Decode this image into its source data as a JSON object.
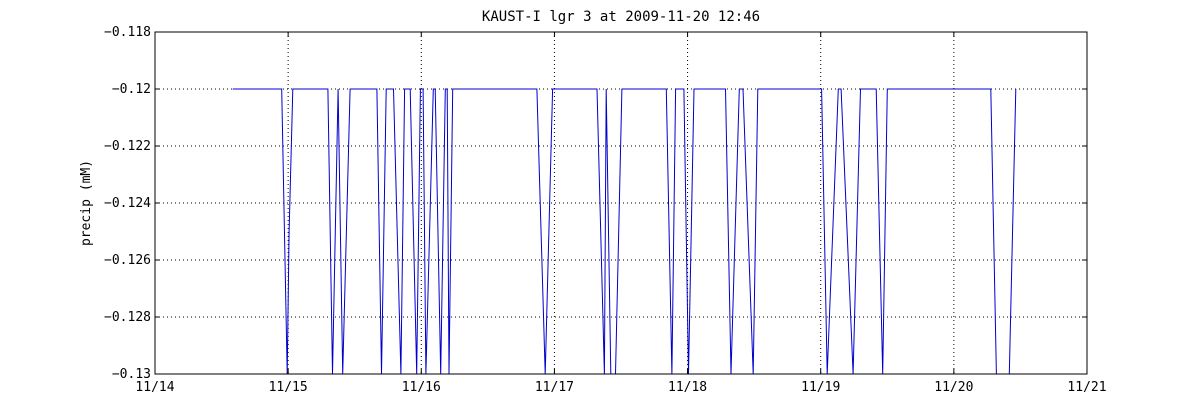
{
  "chart_data": {
    "type": "line",
    "title": "KAUST-I lgr 3 at 2009-11-20 12:46",
    "xlabel": "",
    "ylabel": "precip (mM)",
    "xlim": [
      "2009-11-14 00:00",
      "2009-11-21 00:00"
    ],
    "ylim": [
      -0.13,
      -0.118
    ],
    "x_ticks": [
      "11/14",
      "11/15",
      "11/16",
      "11/17",
      "11/18",
      "11/19",
      "11/20",
      "11/21"
    ],
    "y_ticks": [
      "-0.118",
      "-0.12",
      "-0.122",
      "-0.124",
      "-0.126",
      "-0.128",
      "-0.13"
    ],
    "grid": true,
    "legend": "none",
    "line_color": "#0000cc",
    "series": [
      {
        "x": [
          "2009-11-14 14:00",
          "2009-11-14 22:50",
          "2009-11-14 23:50",
          "2009-11-15 00:10",
          "2009-11-15 00:50",
          "2009-11-15 03:00",
          "2009-11-15 07:10",
          "2009-11-15 08:00",
          "2009-11-15 09:00",
          "2009-11-15 09:50",
          "2009-11-15 11:10",
          "2009-11-15 12:10",
          "2009-11-15 16:00",
          "2009-11-15 16:50",
          "2009-11-15 17:40",
          "2009-11-15 19:00",
          "2009-11-15 20:20",
          "2009-11-15 21:00",
          "2009-11-15 22:00",
          "2009-11-15 23:10",
          "2009-11-15 23:50",
          "2009-11-16 00:20",
          "2009-11-16 00:50",
          "2009-11-16 02:10",
          "2009-11-16 02:30",
          "2009-11-16 03:30",
          "2009-11-16 04:20",
          "2009-11-16 04:40",
          "2009-11-16 05:00",
          "2009-11-16 05:40",
          "2009-11-16 06:50",
          "2009-11-16 08:40",
          "2009-11-16 20:50",
          "2009-11-16 22:20",
          "2009-11-16 23:40",
          "2009-11-17 00:40",
          "2009-11-17 07:40",
          "2009-11-17 09:00",
          "2009-11-17 09:20",
          "2009-11-17 10:10",
          "2009-11-17 11:00",
          "2009-11-17 12:10",
          "2009-11-17 14:00",
          "2009-11-17 20:10",
          "2009-11-17 21:10",
          "2009-11-17 21:50",
          "2009-11-17 23:20",
          "2009-11-18 00:10",
          "2009-11-18 01:10",
          "2009-11-18 06:50",
          "2009-11-18 07:50",
          "2009-11-18 09:20",
          "2009-11-18 10:00",
          "2009-11-18 11:50",
          "2009-11-18 12:40",
          "2009-11-18 14:00",
          "2009-11-18 23:00",
          "2009-11-19 00:10",
          "2009-11-19 01:10",
          "2009-11-19 03:10",
          "2009-11-19 03:40",
          "2009-11-19 05:50",
          "2009-11-19 07:10",
          "2009-11-19 10:00",
          "2009-11-19 11:10",
          "2009-11-19 12:00",
          "2009-11-19 14:00",
          "2009-11-19 14:40",
          "2009-11-19 15:40",
          "2009-11-20 06:40",
          "2009-11-20 07:40",
          "2009-11-20 10:00",
          "2009-11-20 11:10"
        ],
        "y": [
          -0.12,
          -0.12,
          -0.13,
          -0.125,
          -0.12,
          -0.12,
          -0.12,
          -0.13,
          -0.12,
          -0.13,
          -0.12,
          -0.12,
          -0.12,
          -0.13,
          -0.12,
          -0.12,
          -0.13,
          -0.12,
          -0.12,
          -0.13,
          -0.12,
          -0.12,
          -0.13,
          -0.12,
          -0.12,
          -0.13,
          -0.12,
          -0.12,
          -0.13,
          -0.12,
          -0.12,
          -0.12,
          -0.12,
          -0.13,
          -0.12,
          -0.12,
          -0.12,
          -0.13,
          -0.12,
          -0.13,
          -0.13,
          -0.12,
          -0.12,
          -0.12,
          -0.13,
          -0.12,
          -0.12,
          -0.13,
          -0.12,
          -0.12,
          -0.13,
          -0.12,
          -0.12,
          -0.13,
          -0.12,
          -0.12,
          -0.12,
          -0.12,
          -0.13,
          -0.12,
          -0.12,
          -0.13,
          -0.12,
          -0.12,
          -0.13,
          -0.12,
          -0.12,
          -0.12,
          -0.12,
          -0.12,
          -0.13,
          -0.13,
          -0.12
        ]
      }
    ]
  }
}
